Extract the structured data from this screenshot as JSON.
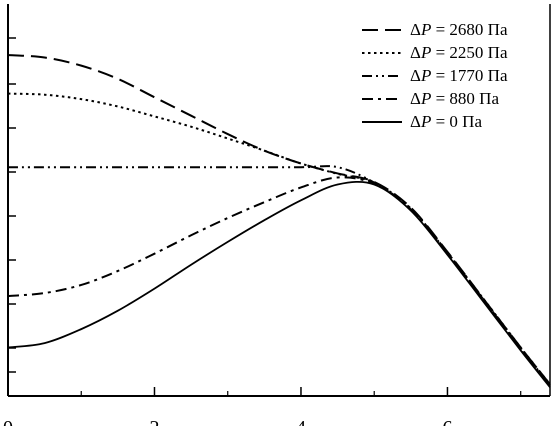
{
  "chart_data": {
    "type": "line",
    "title": "",
    "xlabel": "",
    "ylabel": "",
    "x_ticks": [
      "0",
      "2",
      "4",
      "6"
    ],
    "xlim": [
      0,
      7.4
    ],
    "grid": false,
    "legend_position": "top-right",
    "series": [
      {
        "name": "ΔP = 2680 Па",
        "dash": "dashed",
        "x": [
          0,
          0.5,
          1,
          1.5,
          2,
          2.5,
          3,
          3.5,
          4,
          4.5,
          5,
          5.5,
          6,
          6.5,
          7,
          7.4
        ],
        "y": [
          0.905,
          0.898,
          0.876,
          0.84,
          0.79,
          0.74,
          0.69,
          0.645,
          0.61,
          0.583,
          0.56,
          0.49,
          0.37,
          0.24,
          0.11,
          0.01
        ]
      },
      {
        "name": "ΔP = 2250 Па",
        "dash": "dotted",
        "x": [
          0,
          0.5,
          1,
          1.5,
          2,
          2.5,
          3,
          3.5,
          4,
          4.5,
          5,
          5.5,
          6,
          6.5,
          7,
          7.4
        ],
        "y": [
          0.8,
          0.797,
          0.785,
          0.765,
          0.738,
          0.71,
          0.678,
          0.645,
          0.61,
          0.582,
          0.558,
          0.488,
          0.368,
          0.24,
          0.11,
          0.01
        ]
      },
      {
        "name": "ΔP = 1770 Па",
        "dash": "dash-dot-dot",
        "x": [
          0,
          1,
          2,
          3,
          4,
          4.5,
          5,
          5.5,
          6,
          6.5,
          7,
          7.4
        ],
        "y": [
          0.6,
          0.6,
          0.6,
          0.6,
          0.6,
          0.6,
          0.558,
          0.487,
          0.367,
          0.238,
          0.108,
          0.008
        ]
      },
      {
        "name": "ΔP = 880 Па",
        "dash": "dash-dot",
        "x": [
          0,
          0.5,
          1,
          1.5,
          2,
          2.5,
          3,
          3.5,
          4,
          4.5,
          5,
          5.5,
          6,
          6.5,
          7,
          7.4
        ],
        "y": [
          0.25,
          0.258,
          0.28,
          0.318,
          0.365,
          0.415,
          0.462,
          0.505,
          0.545,
          0.572,
          0.555,
          0.485,
          0.365,
          0.235,
          0.105,
          0.005
        ]
      },
      {
        "name": "ΔP = 0 Па",
        "dash": "solid",
        "x": [
          0,
          0.5,
          1,
          1.5,
          2,
          2.5,
          3,
          3.5,
          4,
          4.5,
          5,
          5.5,
          6,
          6.5,
          7,
          7.4
        ],
        "y": [
          0.11,
          0.122,
          0.16,
          0.21,
          0.27,
          0.335,
          0.397,
          0.456,
          0.51,
          0.553,
          0.553,
          0.482,
          0.362,
          0.232,
          0.102,
          0.002
        ]
      }
    ],
    "legend_label_prefix": "Δ",
    "legend_label_var": "P"
  }
}
